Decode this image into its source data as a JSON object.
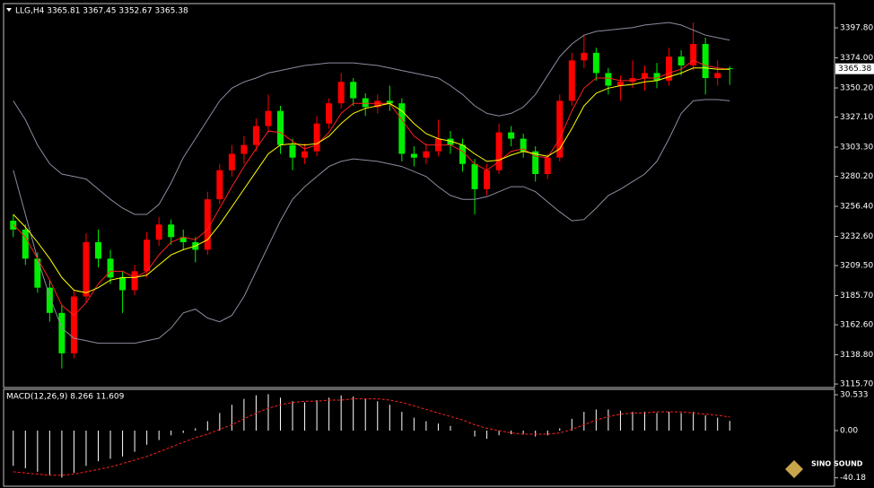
{
  "chart_data": [
    {
      "type": "candlestick",
      "title": "LLG,H4  3365.81 3367.45 3352.67 3365.38",
      "up_color": "#ff0000",
      "down_color": "#00ee00",
      "ohlc": [
        [
          3245,
          3250,
          3232,
          3238
        ],
        [
          3238,
          3242,
          3210,
          3215
        ],
        [
          3215,
          3220,
          3188,
          3192
        ],
        [
          3192,
          3198,
          3165,
          3172
        ],
        [
          3172,
          3178,
          3128,
          3140
        ],
        [
          3140,
          3190,
          3136,
          3185
        ],
        [
          3185,
          3235,
          3180,
          3228
        ],
        [
          3228,
          3238,
          3208,
          3215
        ],
        [
          3215,
          3222,
          3195,
          3200
        ],
        [
          3200,
          3205,
          3172,
          3190
        ],
        [
          3190,
          3210,
          3186,
          3205
        ],
        [
          3205,
          3236,
          3200,
          3230
        ],
        [
          3230,
          3248,
          3225,
          3242
        ],
        [
          3242,
          3246,
          3226,
          3232
        ],
        [
          3232,
          3238,
          3222,
          3228
        ],
        [
          3228,
          3232,
          3212,
          3222
        ],
        [
          3222,
          3268,
          3218,
          3262
        ],
        [
          3262,
          3290,
          3258,
          3285
        ],
        [
          3285,
          3305,
          3280,
          3298
        ],
        [
          3298,
          3312,
          3290,
          3305
        ],
        [
          3305,
          3326,
          3300,
          3320
        ],
        [
          3320,
          3345,
          3315,
          3332
        ],
        [
          3332,
          3336,
          3298,
          3305
        ],
        [
          3305,
          3310,
          3285,
          3295
        ],
        [
          3295,
          3306,
          3290,
          3300
        ],
        [
          3300,
          3328,
          3296,
          3322
        ],
        [
          3322,
          3342,
          3318,
          3338
        ],
        [
          3338,
          3362,
          3334,
          3355
        ],
        [
          3355,
          3358,
          3336,
          3342
        ],
        [
          3342,
          3346,
          3328,
          3335
        ],
        [
          3335,
          3345,
          3330,
          3340
        ],
        [
          3340,
          3352,
          3332,
          3338
        ],
        [
          3338,
          3342,
          3292,
          3298
        ],
        [
          3298,
          3304,
          3288,
          3295
        ],
        [
          3295,
          3306,
          3290,
          3300
        ],
        [
          3300,
          3325,
          3296,
          3310
        ],
        [
          3310,
          3316,
          3298,
          3305
        ],
        [
          3305,
          3310,
          3284,
          3290
        ],
        [
          3290,
          3294,
          3250,
          3270
        ],
        [
          3270,
          3290,
          3265,
          3285
        ],
        [
          3285,
          3322,
          3282,
          3315
        ],
        [
          3315,
          3320,
          3304,
          3310
        ],
        [
          3310,
          3314,
          3295,
          3300
        ],
        [
          3300,
          3304,
          3276,
          3282
        ],
        [
          3282,
          3298,
          3278,
          3295
        ],
        [
          3295,
          3345,
          3292,
          3340
        ],
        [
          3340,
          3378,
          3336,
          3372
        ],
        [
          3372,
          3392,
          3366,
          3378
        ],
        [
          3378,
          3382,
          3356,
          3362
        ],
        [
          3362,
          3366,
          3345,
          3352
        ],
        [
          3352,
          3360,
          3340,
          3355
        ],
        [
          3355,
          3372,
          3350,
          3358
        ],
        [
          3358,
          3368,
          3348,
          3362
        ],
        [
          3362,
          3370,
          3350,
          3356
        ],
        [
          3356,
          3382,
          3352,
          3375
        ],
        [
          3375,
          3380,
          3360,
          3368
        ],
        [
          3368,
          3402,
          3364,
          3385
        ],
        [
          3385,
          3390,
          3345,
          3358
        ],
        [
          3358,
          3372,
          3352,
          3362
        ],
        [
          3365.81,
          3367.45,
          3352.67,
          3365.38
        ]
      ],
      "series": [
        {
          "color": "#8c8ca0",
          "values": [
            3340,
            3325,
            3305,
            3290,
            3282,
            3280,
            3278,
            3270,
            3262,
            3255,
            3250,
            3250,
            3258,
            3275,
            3295,
            3310,
            3325,
            3340,
            3350,
            3355,
            3358,
            3362,
            3364,
            3366,
            3368,
            3369,
            3370,
            3370,
            3370,
            3369,
            3368,
            3366,
            3364,
            3362,
            3360,
            3358,
            3352,
            3345,
            3336,
            3330,
            3328,
            3330,
            3335,
            3345,
            3360,
            3375,
            3385,
            3392,
            3395,
            3396,
            3397,
            3398,
            3400,
            3401,
            3402,
            3400,
            3396,
            3392,
            3390,
            3388
          ]
        },
        {
          "color": "#8c8ca0",
          "values": [
            3285,
            3250,
            3215,
            3185,
            3160,
            3152,
            3150,
            3148,
            3148,
            3148,
            3148,
            3150,
            3152,
            3160,
            3172,
            3175,
            3168,
            3165,
            3170,
            3185,
            3205,
            3225,
            3245,
            3262,
            3272,
            3280,
            3288,
            3292,
            3294,
            3293,
            3292,
            3290,
            3288,
            3284,
            3280,
            3272,
            3265,
            3262,
            3262,
            3264,
            3268,
            3272,
            3272,
            3268,
            3260,
            3252,
            3245,
            3246,
            3255,
            3265,
            3270,
            3276,
            3282,
            3292,
            3310,
            3330,
            3340,
            3341,
            3341,
            3340
          ]
        },
        {
          "color": "#ff2020",
          "values": [
            3242,
            3232,
            3215,
            3198,
            3178,
            3170,
            3180,
            3195,
            3205,
            3205,
            3200,
            3205,
            3218,
            3228,
            3232,
            3230,
            3238,
            3255,
            3272,
            3288,
            3302,
            3316,
            3315,
            3308,
            3302,
            3305,
            3315,
            3330,
            3338,
            3338,
            3338,
            3338,
            3325,
            3312,
            3305,
            3305,
            3305,
            3300,
            3290,
            3285,
            3292,
            3300,
            3302,
            3296,
            3295,
            3310,
            3332,
            3350,
            3358,
            3358,
            3356,
            3356,
            3358,
            3358,
            3362,
            3365,
            3372,
            3368,
            3366,
            3365
          ]
        },
        {
          "color": "#ffff00",
          "values": [
            3250,
            3240,
            3228,
            3215,
            3200,
            3190,
            3188,
            3192,
            3198,
            3200,
            3200,
            3202,
            3210,
            3218,
            3222,
            3225,
            3230,
            3242,
            3256,
            3270,
            3284,
            3298,
            3305,
            3306,
            3305,
            3306,
            3312,
            3322,
            3330,
            3334,
            3336,
            3338,
            3332,
            3322,
            3314,
            3310,
            3308,
            3305,
            3298,
            3292,
            3293,
            3297,
            3300,
            3298,
            3296,
            3302,
            3318,
            3336,
            3346,
            3350,
            3352,
            3353,
            3355,
            3356,
            3359,
            3362,
            3366,
            3366,
            3365,
            3365
          ]
        }
      ],
      "last_price": 3365.38,
      "ylim": [
        3112.9,
        3417.0
      ],
      "yticks": [
        {
          "value": 3397.8,
          "label": "3397.80"
        },
        {
          "value": 3374,
          "label": "3374.00"
        },
        {
          "value": 3350.2,
          "label": "3350.20"
        },
        {
          "value": 3327.1,
          "label": "3327.10"
        },
        {
          "value": 3303.3,
          "label": "3303.30"
        },
        {
          "value": 3280.2,
          "label": "3280.20"
        },
        {
          "value": 3256.4,
          "label": "3256.40"
        },
        {
          "value": 3232.6,
          "label": "3232.60"
        },
        {
          "value": 3209.5,
          "label": "3209.50"
        },
        {
          "value": 3185.7,
          "label": "3185.70"
        },
        {
          "value": 3162.6,
          "label": "3162.60"
        },
        {
          "value": 3138.8,
          "label": "3138.80"
        },
        {
          "value": 3115.7,
          "label": "3115.70"
        }
      ]
    },
    {
      "type": "macd",
      "title": "MACD(12,26,9) 8.266 11.609",
      "color": "#ffffff",
      "values": [
        -30,
        -32,
        -35,
        -38,
        -40,
        -36,
        -30,
        -26,
        -24,
        -22,
        -18,
        -12,
        -8,
        -4,
        -2,
        2,
        8,
        15,
        22,
        27,
        30,
        31,
        28,
        25,
        24,
        26,
        28,
        30,
        29,
        27,
        25,
        22,
        16,
        11,
        8,
        6,
        4,
        0,
        -5,
        -7,
        -4,
        -3,
        -3,
        -5,
        -4,
        2,
        10,
        16,
        18,
        18,
        17,
        16,
        16,
        15,
        16,
        15,
        16,
        13,
        11,
        8.266
      ],
      "signal": {
        "color": "#ff2020",
        "values": [
          -35,
          -36,
          -37,
          -38,
          -38,
          -37,
          -35,
          -33,
          -31,
          -28,
          -25,
          -22,
          -18,
          -14,
          -10,
          -6,
          -3,
          1,
          5,
          10,
          15,
          19,
          22,
          24,
          25,
          25,
          26,
          26,
          27,
          27,
          27,
          26,
          24,
          21,
          18,
          15,
          12,
          9,
          5,
          2,
          0,
          -2,
          -3,
          -3,
          -3,
          -2,
          1,
          5,
          9,
          12,
          14,
          15,
          15,
          16,
          16,
          16,
          15,
          14,
          13,
          11.609
        ]
      },
      "ylim": [
        -47.3,
        33.6
      ],
      "yticks": [
        30.533,
        {
          "value": 0,
          "label": "0.00"
        },
        -40.18
      ]
    }
  ],
  "watermark": "SINO SOUND"
}
